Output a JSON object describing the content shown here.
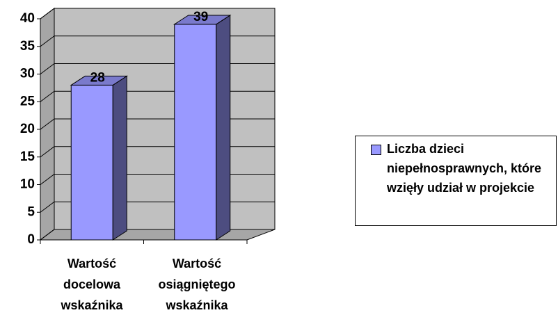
{
  "chart_data": {
    "type": "bar3d",
    "categories": [
      "Wartość docelowa wskaźnika",
      "Wartość osiągniętego wskaźnika"
    ],
    "series": [
      {
        "name": "Liczba dzieci niepełnosprawnych, które wzięły udział w projekcie",
        "color": "#9999ff",
        "values": [
          28,
          39
        ]
      }
    ],
    "ylim": [
      0,
      40
    ],
    "yticks": [
      0,
      5,
      10,
      15,
      20,
      25,
      30,
      35,
      40
    ],
    "grid": true,
    "legend": "right"
  }
}
